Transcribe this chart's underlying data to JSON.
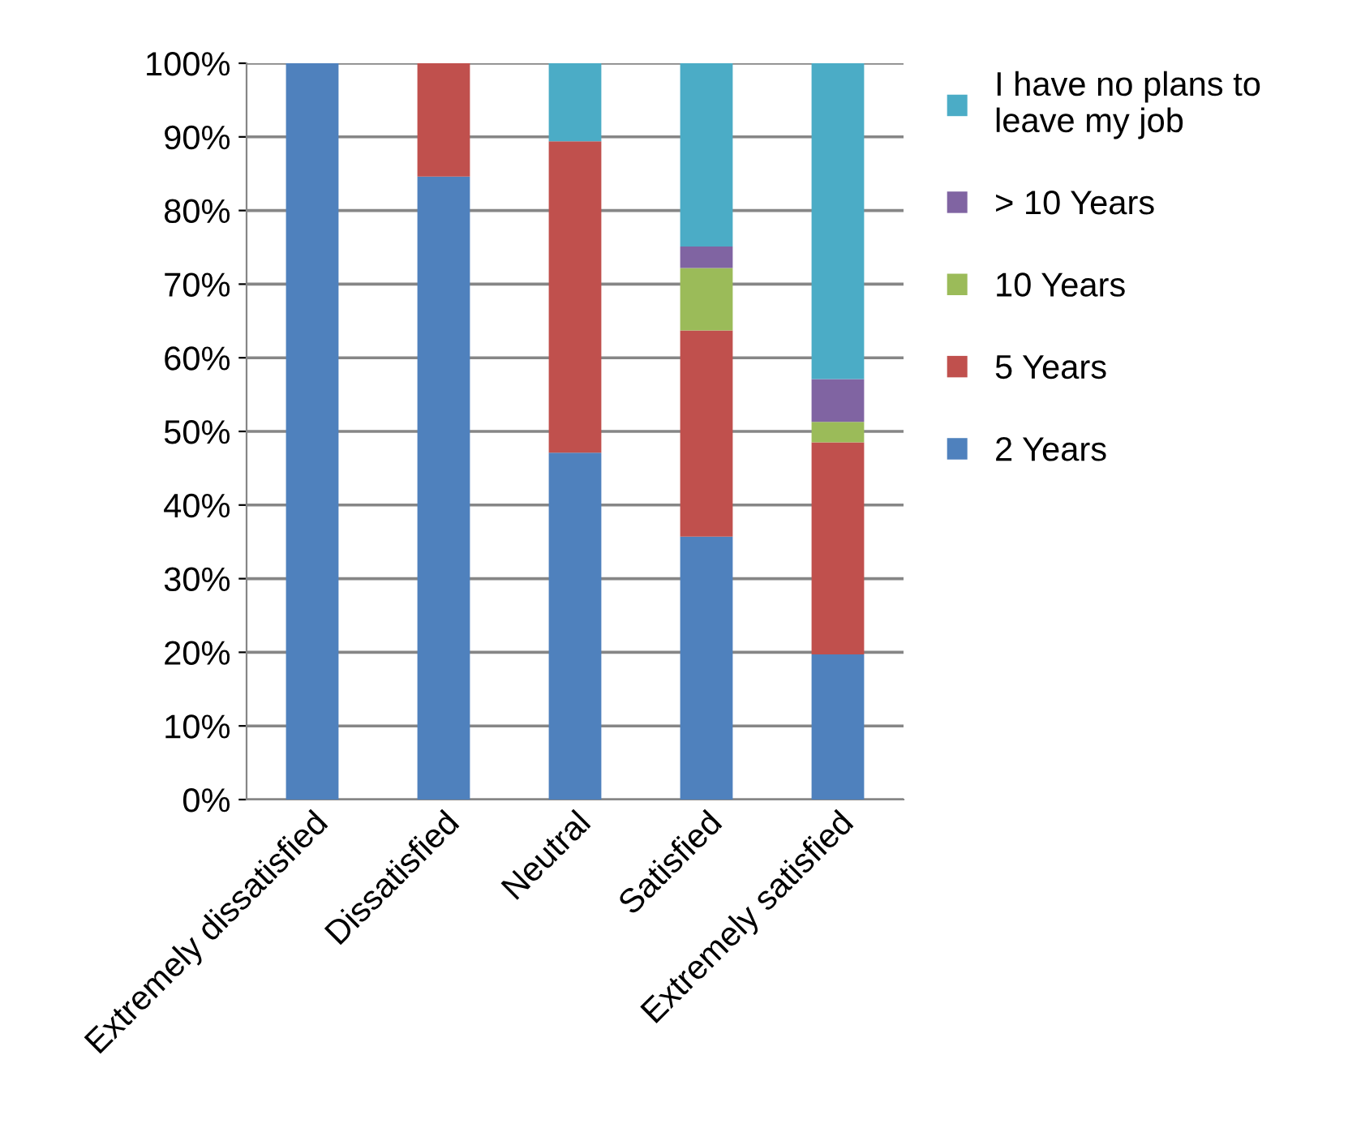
{
  "chart_data": {
    "type": "bar",
    "stacked": true,
    "categories": [
      "Extremely dissatisfied",
      "Dissatisfied",
      "Neutral",
      "Satisfied",
      "Extremely satisfied"
    ],
    "series": [
      {
        "name": "2 Years",
        "color": "#4f81bd",
        "values": [
          100,
          84.6,
          47.1,
          35.7,
          19.7
        ]
      },
      {
        "name": "5 Years",
        "color": "#c0504d",
        "values": [
          0,
          15.4,
          42.3,
          28.0,
          28.8
        ]
      },
      {
        "name": "10 Years",
        "color": "#9bbb59",
        "values": [
          0,
          0,
          0,
          8.5,
          2.8
        ]
      },
      {
        "name": "> 10 Years",
        "color": "#8064a2",
        "values": [
          0,
          0,
          0,
          2.9,
          5.8
        ]
      },
      {
        "name": "I have no plans to\nleave my job",
        "color": "#4bacc6",
        "values": [
          0,
          0,
          10.6,
          24.9,
          42.9
        ]
      }
    ],
    "ylim": [
      0,
      100
    ],
    "yticks": [
      {
        "value": 0,
        "label": "0%"
      },
      {
        "value": 10,
        "label": "10%"
      },
      {
        "value": 20,
        "label": "20%"
      },
      {
        "value": 30,
        "label": "30%"
      },
      {
        "value": 40,
        "label": "40%"
      },
      {
        "value": 50,
        "label": "50%"
      },
      {
        "value": 60,
        "label": "60%"
      },
      {
        "value": 70,
        "label": "70%"
      },
      {
        "value": 80,
        "label": "80%"
      },
      {
        "value": 90,
        "label": "90%"
      },
      {
        "value": 100,
        "label": "100%"
      }
    ],
    "grid": "y",
    "legend": "right"
  }
}
